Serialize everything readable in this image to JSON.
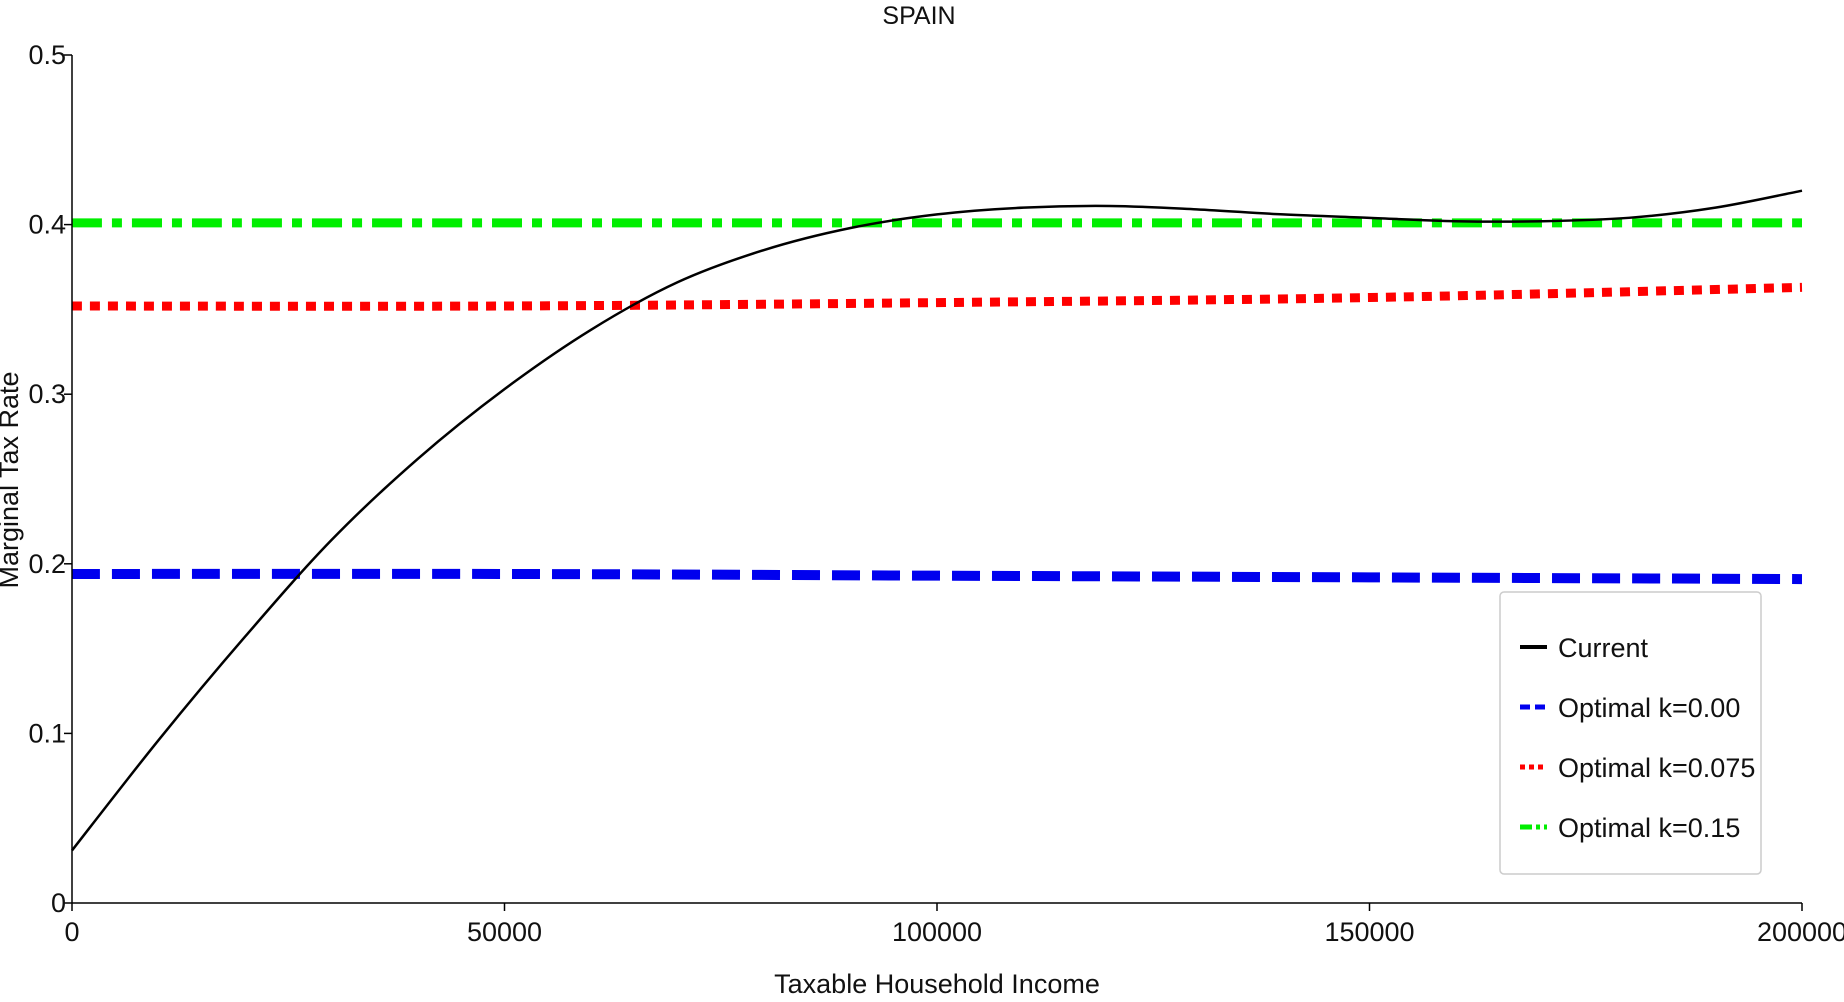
{
  "chart_data": {
    "type": "line",
    "title": "SPAIN",
    "xlabel": "Taxable Household Income",
    "ylabel": "Marginal Tax Rate",
    "xlim": [
      0,
      200000
    ],
    "ylim": [
      0,
      0.5
    ],
    "x_ticks": [
      0,
      50000,
      100000,
      150000,
      200000
    ],
    "x_tick_labels": [
      "0",
      "50000",
      "100000",
      "150000",
      "200000"
    ],
    "y_ticks": [
      0,
      0.1,
      0.2,
      0.3,
      0.4,
      0.5
    ],
    "y_tick_labels": [
      "0",
      "0.1",
      "0.2",
      "0.3",
      "0.4",
      "0.5"
    ],
    "grid": false,
    "legend_position": "bottom-right",
    "series": [
      {
        "name": "Current",
        "color": "#000000",
        "style": "solid",
        "x": [
          0,
          10000,
          20000,
          30000,
          40000,
          50000,
          60000,
          70000,
          80000,
          90000,
          100000,
          110000,
          120000,
          130000,
          140000,
          150000,
          160000,
          170000,
          180000,
          190000,
          200000
        ],
        "y": [
          0.031,
          0.096,
          0.157,
          0.214,
          0.262,
          0.303,
          0.338,
          0.366,
          0.385,
          0.398,
          0.406,
          0.41,
          0.411,
          0.409,
          0.406,
          0.404,
          0.402,
          0.402,
          0.404,
          0.41,
          0.42
        ]
      },
      {
        "name": "Optimal k=0.00",
        "color": "#0000ee",
        "style": "dashed",
        "x": [
          0,
          50000,
          100000,
          150000,
          200000
        ],
        "y": [
          0.194,
          0.194,
          0.193,
          0.192,
          0.191
        ]
      },
      {
        "name": "Optimal k=0.075",
        "color": "#ff0000",
        "style": "dotted",
        "x": [
          0,
          50000,
          100000,
          150000,
          200000
        ],
        "y": [
          0.352,
          0.352,
          0.354,
          0.357,
          0.363
        ]
      },
      {
        "name": "Optimal k=0.15",
        "color": "#00ee00",
        "style": "dashdot",
        "x": [
          0,
          50000,
          100000,
          150000,
          200000
        ],
        "y": [
          0.401,
          0.401,
          0.401,
          0.401,
          0.401
        ]
      }
    ]
  }
}
